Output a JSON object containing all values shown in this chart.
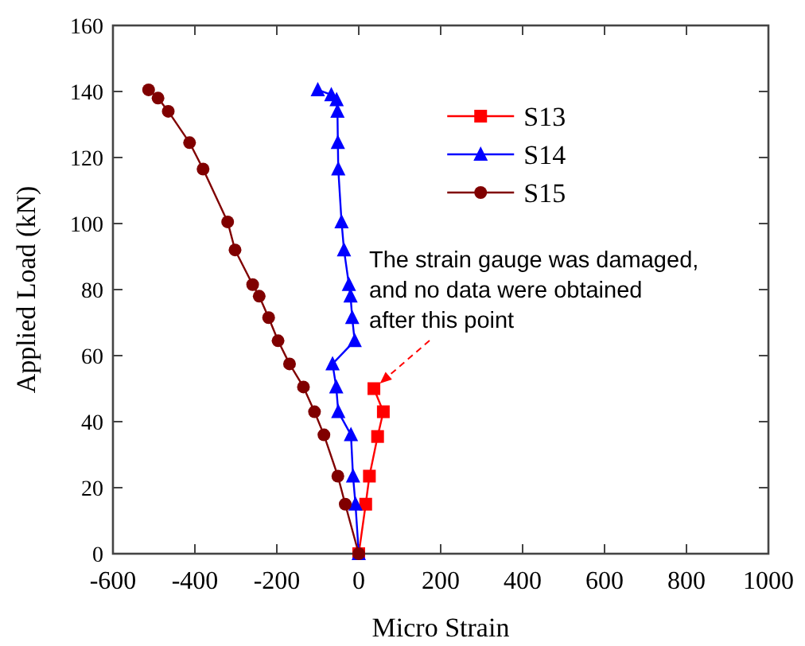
{
  "chart_data": {
    "type": "line",
    "xlabel": "Micro Strain",
    "ylabel": "Applied Load (kN)",
    "xlim": [
      -600,
      1000
    ],
    "xticks": [
      -600,
      -400,
      -200,
      0,
      200,
      400,
      600,
      800,
      1000
    ],
    "ylim": [
      0,
      160
    ],
    "yticks": [
      0,
      20,
      40,
      60,
      80,
      100,
      120,
      140,
      160
    ],
    "grid": false,
    "legend": "top right",
    "line_style": "solid",
    "series": [
      {
        "name": "S13",
        "color": "#ff0000",
        "marker": "square",
        "x": [
          0,
          17,
          26,
          46,
          60,
          37
        ],
        "values": [
          0,
          15,
          23.5,
          35.5,
          43,
          50
        ]
      },
      {
        "name": "S14",
        "color": "#0000ff",
        "marker": "triangle",
        "x": [
          0,
          -8,
          -14,
          -19,
          -50,
          -55,
          -64,
          -10,
          -16,
          -20,
          -24,
          -36,
          -42,
          -50,
          -51,
          -52,
          -54,
          -67,
          -100
        ],
        "values": [
          0,
          15,
          23.5,
          36,
          43,
          50.5,
          57.5,
          64.5,
          71.5,
          78,
          81.5,
          92,
          100.5,
          116.5,
          124.5,
          134,
          137.5,
          139,
          140.5
        ]
      },
      {
        "name": "S15",
        "color": "#800000",
        "marker": "circle",
        "x": [
          0,
          -33,
          -51,
          -85,
          -108,
          -135,
          -169,
          -197,
          -220,
          -243,
          -259,
          -302,
          -320,
          -380,
          -413,
          -465,
          -490,
          -496,
          -504,
          -513
        ],
        "values": [
          0,
          15,
          23.5,
          36,
          43,
          50.5,
          57.5,
          64.5,
          71.5,
          78,
          81.5,
          92,
          100.5,
          116.5,
          124.5,
          134,
          138,
          null,
          null,
          140.5
        ]
      }
    ],
    "annotations": [
      {
        "text": "The strain gauge was damaged, and no data were obtained after this point",
        "x": 37,
        "y": 50
      }
    ]
  }
}
